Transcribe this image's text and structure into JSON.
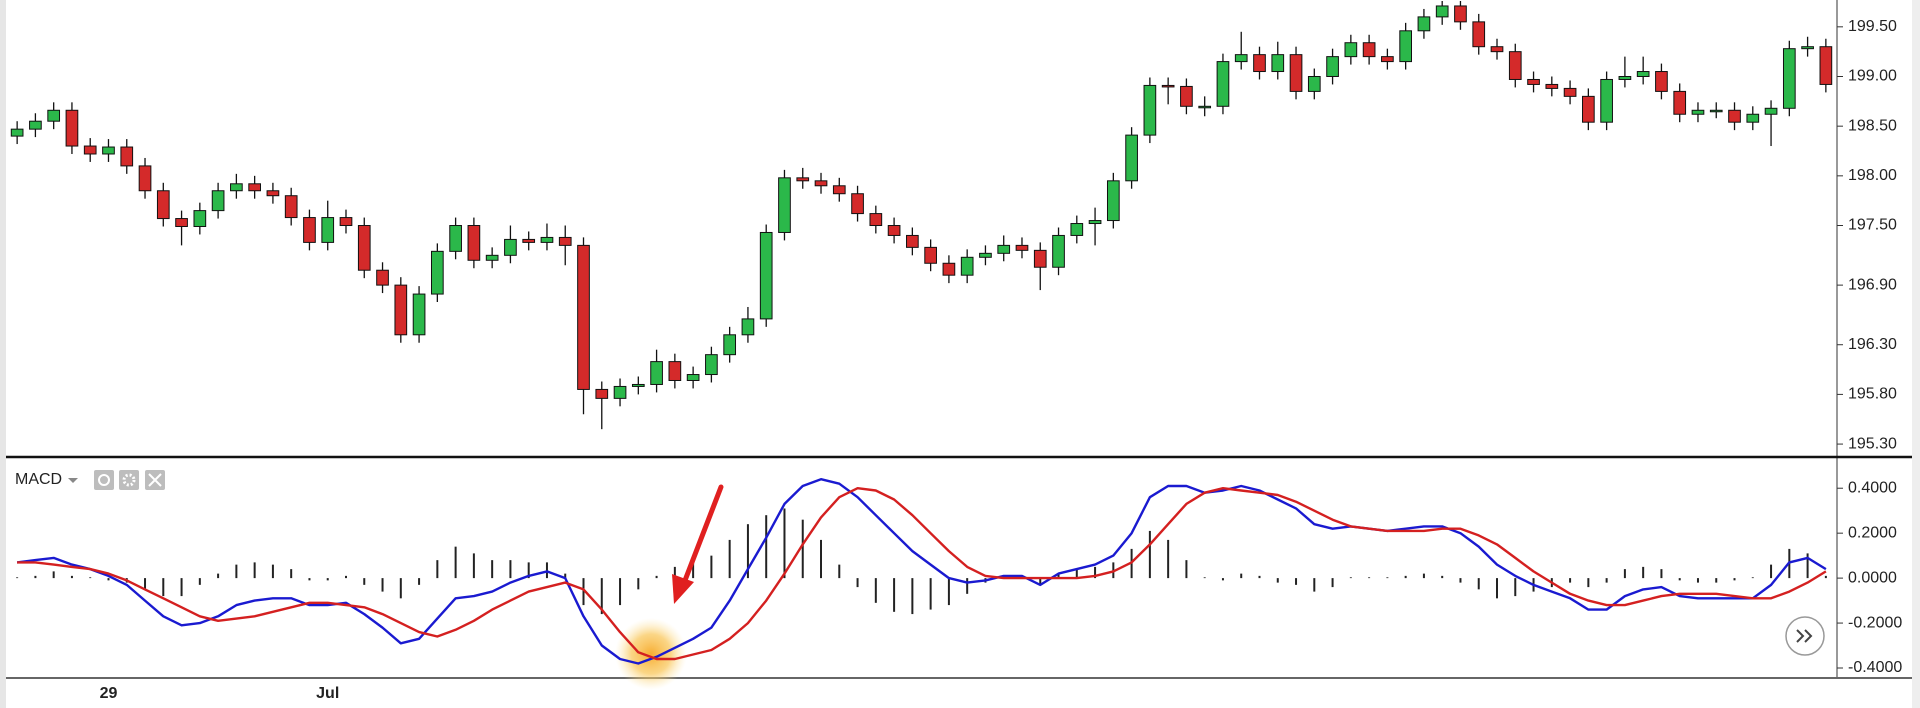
{
  "chart_data": [
    {
      "type": "candlestick",
      "categories": [
        null,
        null,
        null,
        null,
        null,
        "29",
        null,
        null,
        null,
        null,
        null,
        null,
        null,
        null,
        null,
        null,
        null,
        "Jul",
        null,
        null,
        null,
        null,
        null,
        null,
        null,
        null,
        null,
        null,
        null,
        null,
        null,
        null,
        null,
        null,
        null,
        null,
        null,
        null,
        null,
        null,
        null,
        null,
        null,
        null,
        null,
        null,
        null,
        null,
        null,
        null,
        null,
        null,
        null,
        null,
        null,
        null,
        null,
        null,
        null,
        null,
        null,
        null,
        null,
        null,
        null,
        null,
        null,
        null,
        null,
        null,
        null,
        null,
        null,
        null,
        null,
        null,
        null,
        null,
        null,
        null,
        null,
        null,
        null,
        null,
        null,
        null,
        null,
        null,
        null,
        null,
        null,
        null,
        null,
        null,
        null,
        null,
        null,
        null,
        null,
        null
      ],
      "open": [
        198.4,
        198.47,
        198.55,
        198.66,
        198.3,
        198.22,
        198.29,
        198.1,
        197.85,
        197.57,
        197.49,
        197.65,
        197.85,
        197.92,
        197.85,
        197.8,
        197.58,
        197.33,
        197.58,
        197.5,
        197.05,
        196.9,
        196.4,
        196.81,
        197.24,
        197.5,
        197.15,
        197.2,
        197.36,
        197.33,
        197.38,
        197.3,
        195.85,
        195.76,
        195.88,
        195.9,
        196.13,
        195.94,
        196.0,
        196.2,
        196.4,
        196.56,
        197.43,
        197.98,
        197.95,
        197.9,
        197.82,
        197.62,
        197.5,
        197.4,
        197.28,
        197.12,
        197.0,
        197.18,
        197.22,
        197.3,
        197.25,
        197.08,
        197.4,
        197.52,
        197.55,
        197.95,
        198.41,
        198.91,
        198.9,
        198.7,
        198.7,
        199.15,
        199.22,
        199.05,
        199.22,
        198.85,
        199.0,
        199.2,
        199.34,
        199.2,
        199.15,
        199.46,
        199.6,
        199.71,
        199.55,
        199.3,
        199.25,
        198.97,
        198.92,
        198.88,
        198.8,
        198.54,
        198.97,
        199.0,
        199.05,
        198.85,
        198.62,
        198.66,
        198.66,
        198.54,
        198.62,
        198.68,
        199.28,
        199.3
      ],
      "high": [
        198.55,
        198.63,
        198.74,
        198.74,
        198.38,
        198.37,
        198.37,
        198.18,
        197.93,
        197.65,
        197.73,
        197.93,
        198.02,
        198.0,
        197.93,
        197.88,
        197.66,
        197.75,
        197.66,
        197.58,
        197.13,
        196.98,
        196.89,
        197.32,
        197.58,
        197.58,
        197.28,
        197.5,
        197.44,
        197.52,
        197.5,
        197.38,
        195.93,
        195.96,
        195.98,
        196.25,
        196.21,
        196.08,
        196.28,
        196.48,
        196.68,
        197.51,
        198.06,
        198.08,
        198.03,
        197.98,
        197.9,
        197.7,
        197.58,
        197.48,
        197.36,
        197.2,
        197.26,
        197.3,
        197.4,
        197.38,
        197.33,
        197.48,
        197.6,
        197.68,
        198.03,
        198.49,
        198.99,
        198.99,
        198.98,
        198.8,
        199.23,
        199.45,
        199.3,
        199.35,
        199.3,
        199.08,
        199.28,
        199.42,
        199.42,
        199.28,
        199.54,
        199.68,
        199.76,
        199.76,
        199.63,
        199.38,
        199.33,
        199.05,
        199.0,
        198.96,
        198.88,
        199.05,
        199.2,
        199.2,
        199.13,
        198.93,
        198.74,
        198.74,
        198.74,
        198.7,
        198.76,
        199.36,
        199.4,
        199.38
      ],
      "low": [
        198.32,
        198.39,
        198.47,
        198.22,
        198.14,
        198.14,
        198.02,
        197.77,
        197.49,
        197.3,
        197.41,
        197.57,
        197.77,
        197.77,
        197.72,
        197.5,
        197.25,
        197.25,
        197.42,
        196.97,
        196.82,
        196.32,
        196.32,
        196.73,
        197.16,
        197.07,
        197.07,
        197.12,
        197.25,
        197.25,
        197.1,
        195.6,
        195.45,
        195.68,
        195.8,
        195.82,
        195.86,
        195.86,
        195.92,
        196.12,
        196.32,
        196.48,
        197.35,
        197.87,
        197.82,
        197.74,
        197.54,
        197.42,
        197.32,
        197.2,
        197.04,
        196.92,
        196.92,
        197.1,
        197.14,
        197.17,
        196.85,
        197.0,
        197.32,
        197.3,
        197.47,
        197.87,
        198.33,
        198.72,
        198.62,
        198.6,
        198.62,
        199.07,
        198.97,
        198.97,
        198.77,
        198.77,
        198.92,
        199.12,
        199.12,
        199.07,
        199.07,
        199.38,
        199.52,
        199.47,
        199.22,
        199.17,
        198.89,
        198.84,
        198.8,
        198.72,
        198.46,
        198.46,
        198.89,
        198.92,
        198.77,
        198.54,
        198.54,
        198.58,
        198.46,
        198.46,
        198.3,
        198.6,
        199.2,
        198.84
      ],
      "close": [
        198.47,
        198.55,
        198.66,
        198.3,
        198.22,
        198.29,
        198.1,
        197.85,
        197.57,
        197.49,
        197.65,
        197.85,
        197.92,
        197.85,
        197.8,
        197.58,
        197.33,
        197.58,
        197.5,
        197.05,
        196.9,
        196.4,
        196.81,
        197.24,
        197.5,
        197.15,
        197.2,
        197.36,
        197.33,
        197.38,
        197.3,
        195.85,
        195.76,
        195.88,
        195.9,
        196.13,
        195.94,
        196.0,
        196.2,
        196.4,
        196.56,
        197.43,
        197.98,
        197.95,
        197.9,
        197.82,
        197.62,
        197.5,
        197.4,
        197.28,
        197.12,
        197.0,
        197.18,
        197.22,
        197.3,
        197.25,
        197.08,
        197.4,
        197.52,
        197.55,
        197.95,
        198.41,
        198.91,
        198.9,
        198.7,
        198.7,
        199.15,
        199.22,
        199.05,
        199.22,
        198.85,
        199.0,
        199.2,
        199.34,
        199.2,
        199.15,
        199.46,
        199.6,
        199.71,
        199.55,
        199.3,
        199.25,
        198.97,
        198.92,
        198.88,
        198.8,
        198.54,
        198.97,
        199.0,
        199.05,
        198.85,
        198.62,
        198.66,
        198.66,
        198.54,
        198.62,
        198.68,
        199.28,
        199.3,
        198.92
      ],
      "up_color": "#2bb84a",
      "down_color": "#d42a2a",
      "ylim": [
        195.19,
        199.77
      ],
      "yticks": [
        {
          "value": 199.5,
          "label": "199.50"
        },
        {
          "value": 199.0,
          "label": "199.00"
        },
        {
          "value": 198.5,
          "label": "198.50"
        },
        {
          "value": 198.0,
          "label": "198.00"
        },
        {
          "value": 197.5,
          "label": "197.50"
        },
        {
          "value": 196.9,
          "label": "196.90"
        },
        {
          "value": 196.3,
          "label": "196.30"
        },
        {
          "value": 195.8,
          "label": "195.80"
        },
        {
          "value": 195.3,
          "label": "195.30"
        }
      ]
    },
    {
      "type": "macd",
      "title": "MACD",
      "series": [
        {
          "type": "bar",
          "color": "#222222",
          "values": [
            0.0,
            0.01,
            0.03,
            0.01,
            0.0,
            -0.01,
            -0.02,
            -0.05,
            -0.08,
            -0.08,
            -0.03,
            0.02,
            0.06,
            0.07,
            0.06,
            0.04,
            -0.01,
            -0.01,
            0.01,
            -0.03,
            -0.06,
            -0.09,
            -0.03,
            0.08,
            0.14,
            0.11,
            0.08,
            0.08,
            0.07,
            0.07,
            0.02,
            -0.12,
            -0.16,
            -0.12,
            -0.05,
            0.01,
            0.05,
            0.07,
            0.1,
            0.17,
            0.24,
            0.28,
            0.31,
            0.26,
            0.17,
            0.06,
            -0.04,
            -0.11,
            -0.15,
            -0.16,
            -0.14,
            -0.12,
            -0.07,
            -0.02,
            0.01,
            0.01,
            -0.03,
            0.02,
            0.04,
            0.05,
            0.07,
            0.13,
            0.21,
            0.17,
            0.08,
            0.0,
            -0.01,
            0.02,
            0.01,
            -0.02,
            -0.03,
            -0.06,
            -0.04,
            0.0,
            0.0,
            0.0,
            0.01,
            0.02,
            0.01,
            -0.02,
            -0.05,
            -0.09,
            -0.08,
            -0.06,
            -0.04,
            -0.02,
            -0.04,
            -0.02,
            0.04,
            0.05,
            0.04,
            -0.01,
            -0.02,
            -0.02,
            -0.01,
            0.0,
            0.06,
            0.13,
            0.11,
            0.01
          ]
        },
        {
          "type": "line",
          "color": "#1a1ad0",
          "values": [
            0.07,
            0.08,
            0.09,
            0.06,
            0.04,
            0.01,
            -0.03,
            -0.1,
            -0.17,
            -0.21,
            -0.2,
            -0.17,
            -0.12,
            -0.1,
            -0.09,
            -0.09,
            -0.12,
            -0.12,
            -0.11,
            -0.16,
            -0.22,
            -0.29,
            -0.27,
            -0.18,
            -0.09,
            -0.08,
            -0.06,
            -0.02,
            0.01,
            0.03,
            0.0,
            -0.17,
            -0.3,
            -0.36,
            -0.38,
            -0.35,
            -0.31,
            -0.27,
            -0.22,
            -0.1,
            0.04,
            0.18,
            0.33,
            0.41,
            0.44,
            0.42,
            0.36,
            0.28,
            0.2,
            0.12,
            0.06,
            0.0,
            -0.02,
            -0.01,
            0.01,
            0.01,
            -0.03,
            0.02,
            0.04,
            0.06,
            0.1,
            0.2,
            0.36,
            0.41,
            0.41,
            0.38,
            0.39,
            0.41,
            0.39,
            0.35,
            0.31,
            0.24,
            0.22,
            0.23,
            0.22,
            0.21,
            0.22,
            0.23,
            0.23,
            0.2,
            0.14,
            0.06,
            0.01,
            -0.03,
            -0.06,
            -0.09,
            -0.14,
            -0.14,
            -0.08,
            -0.05,
            -0.04,
            -0.08,
            -0.09,
            -0.09,
            -0.09,
            -0.09,
            -0.03,
            0.07,
            0.09,
            0.04
          ]
        },
        {
          "type": "line",
          "color": "#d42020",
          "values": [
            0.07,
            0.07,
            0.06,
            0.05,
            0.04,
            0.02,
            -0.01,
            -0.05,
            -0.09,
            -0.13,
            -0.17,
            -0.19,
            -0.18,
            -0.17,
            -0.15,
            -0.13,
            -0.11,
            -0.11,
            -0.12,
            -0.13,
            -0.16,
            -0.2,
            -0.24,
            -0.26,
            -0.23,
            -0.19,
            -0.14,
            -0.1,
            -0.06,
            -0.04,
            -0.02,
            -0.05,
            -0.14,
            -0.24,
            -0.33,
            -0.36,
            -0.36,
            -0.34,
            -0.32,
            -0.27,
            -0.2,
            -0.1,
            0.02,
            0.15,
            0.27,
            0.36,
            0.4,
            0.39,
            0.35,
            0.28,
            0.2,
            0.12,
            0.05,
            0.01,
            0.0,
            0.0,
            0.0,
            0.0,
            0.0,
            0.01,
            0.03,
            0.07,
            0.15,
            0.24,
            0.33,
            0.38,
            0.4,
            0.39,
            0.38,
            0.37,
            0.34,
            0.3,
            0.26,
            0.23,
            0.22,
            0.21,
            0.21,
            0.21,
            0.22,
            0.22,
            0.19,
            0.15,
            0.09,
            0.03,
            -0.02,
            -0.07,
            -0.1,
            -0.12,
            -0.12,
            -0.1,
            -0.08,
            -0.07,
            -0.07,
            -0.07,
            -0.08,
            -0.09,
            -0.09,
            -0.06,
            -0.02,
            0.03
          ]
        }
      ],
      "ylim": [
        -0.44,
        0.53
      ],
      "yticks": [
        {
          "value": 0.4,
          "label": "0.4000"
        },
        {
          "value": 0.2,
          "label": "0.2000"
        },
        {
          "value": 0,
          "label": "0.0000"
        },
        {
          "value": -0.2,
          "label": "-0.2000"
        },
        {
          "value": -0.4,
          "label": "-0.4000"
        }
      ]
    }
  ]
}
